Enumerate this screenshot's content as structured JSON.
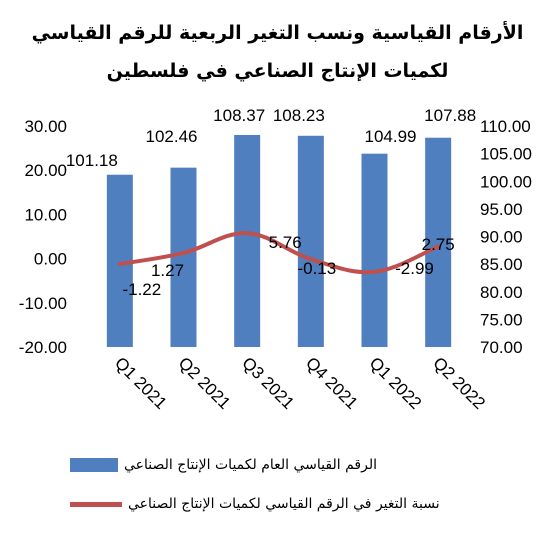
{
  "title": {
    "line1": "الأرقام القياسية ونسب التغير الربعية للرقم القياسي",
    "line2": "لكميات الإنتاج الصناعي في فلسطين"
  },
  "colors": {
    "bar": "#4f7fbe",
    "line": "#c0504d",
    "grid": "#d9d9d9"
  },
  "chart_data": {
    "type": "bar+line",
    "categories": [
      "Q1 2021",
      "Q2 2021",
      "Q3 2021",
      "Q4 2021",
      "Q1 2022",
      "Q2 2022"
    ],
    "series": [
      {
        "name": "الرقم القياسي العام لكميات الإنتاج الصناعي",
        "type": "bar",
        "axis": "right",
        "values": [
          101.18,
          102.46,
          108.37,
          108.23,
          104.99,
          107.88
        ]
      },
      {
        "name": "نسبة التغير في الرقم القياسي لكميات الإنتاج الصناعي",
        "type": "line",
        "axis": "left",
        "values": [
          -1.22,
          1.27,
          5.76,
          -0.13,
          -2.99,
          2.75
        ]
      }
    ],
    "left_axis": {
      "min": -20,
      "max": 30,
      "ticks": [
        "-20.00",
        "-10.00",
        "0.00",
        "10.00",
        "20.00",
        "30.00"
      ]
    },
    "right_axis": {
      "min": 70,
      "max": 110,
      "ticks": [
        "70.00",
        "75.00",
        "80.00",
        "85.00",
        "90.00",
        "95.00",
        "100.00",
        "105.00",
        "110.00"
      ]
    },
    "bar_labels": [
      "101.18",
      "102.46",
      "108.37",
      "108.23",
      "104.99",
      "107.88"
    ],
    "line_labels": [
      "-1.22",
      "1.27",
      "5.76",
      "-0.13",
      "-2.99",
      "2.75"
    ],
    "grid": false,
    "legend_position": "bottom"
  }
}
